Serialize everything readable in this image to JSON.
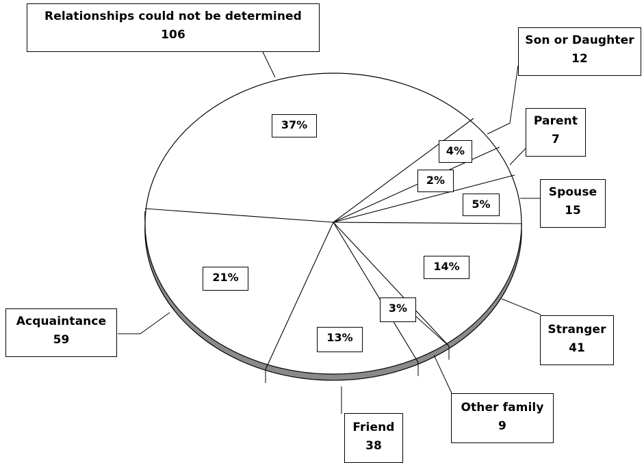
{
  "chart_data": {
    "type": "pie",
    "title": "",
    "labels": [
      "Relationships could not be determined",
      "Son or Daughter",
      "Parent",
      "Spouse",
      "Stranger",
      "Other family",
      "Friend",
      "Acquaintance"
    ],
    "values": [
      106,
      12,
      7,
      15,
      41,
      9,
      38,
      59
    ],
    "percent_labels": [
      "37%",
      "4%",
      "2%",
      "5%",
      "14%",
      "3%",
      "13%",
      "21%"
    ],
    "style": "3d-exploded-callouts",
    "colors": {
      "face": "#ffffff",
      "edge": "#000000",
      "side": "#808080"
    }
  }
}
